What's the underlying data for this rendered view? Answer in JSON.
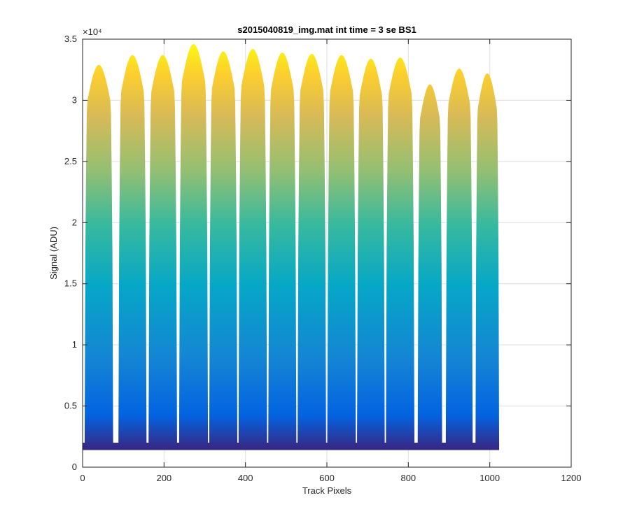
{
  "chart_data": {
    "type": "line",
    "title": "s2015040819_img.mat int time = 3 se   BS1",
    "xlabel": "Track Pixels",
    "ylabel": "Signal (ADU)",
    "xlim": [
      0,
      1200
    ],
    "ylim": [
      0,
      35000
    ],
    "x_ticks": [
      0,
      200,
      400,
      600,
      800,
      1000,
      1200
    ],
    "y_ticks": [
      0,
      0.5,
      1,
      1.5,
      2,
      2.5,
      3,
      3.5
    ],
    "y_exponent_label": "×10⁴",
    "grid": true,
    "colormap": [
      "#352a87",
      "#0363e1",
      "#1485d4",
      "#06a7c6",
      "#38b99e",
      "#92bf73",
      "#d9ba56",
      "#fcce2e",
      "#f9fb0e"
    ],
    "baseline": 1700,
    "x_data_end": 1023,
    "bands": [
      {
        "x_start": 5,
        "x_end": 75,
        "peak": 32900
      },
      {
        "x_start": 88,
        "x_end": 157,
        "peak": 33700
      },
      {
        "x_start": 162,
        "x_end": 232,
        "peak": 33700
      },
      {
        "x_start": 237,
        "x_end": 308,
        "peak": 34600
      },
      {
        "x_start": 311,
        "x_end": 380,
        "peak": 34000
      },
      {
        "x_start": 383,
        "x_end": 453,
        "peak": 34200
      },
      {
        "x_start": 456,
        "x_end": 525,
        "peak": 33900
      },
      {
        "x_start": 528,
        "x_end": 598,
        "peak": 33800
      },
      {
        "x_start": 601,
        "x_end": 671,
        "peak": 33700
      },
      {
        "x_start": 674,
        "x_end": 742,
        "peak": 33400
      },
      {
        "x_start": 745,
        "x_end": 815,
        "peak": 33500
      },
      {
        "x_start": 823,
        "x_end": 883,
        "peak": 31300
      },
      {
        "x_start": 892,
        "x_end": 958,
        "peak": 32600
      },
      {
        "x_start": 965,
        "x_end": 1023,
        "peak": 32200
      }
    ]
  }
}
